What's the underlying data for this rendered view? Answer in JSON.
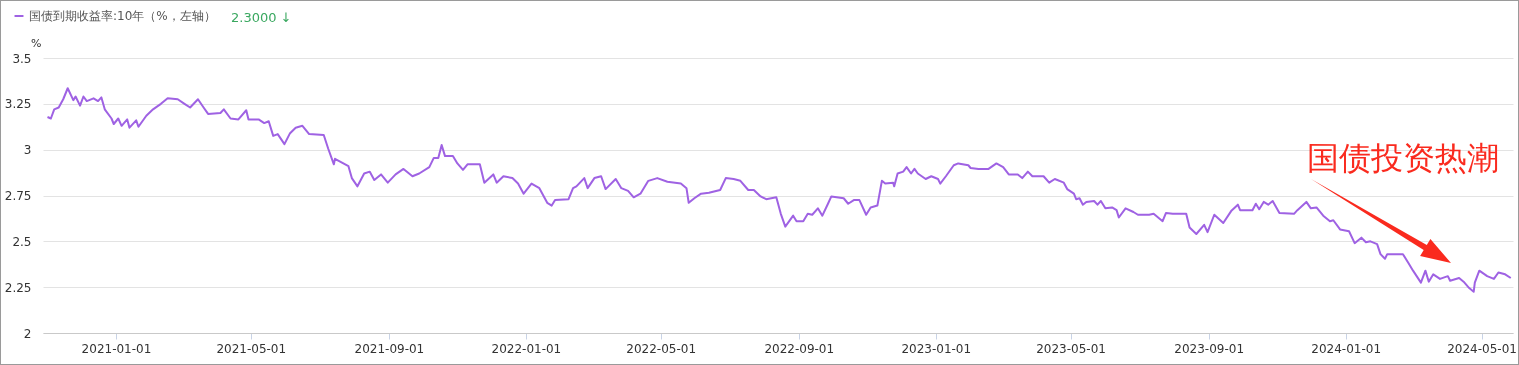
{
  "chart_data": {
    "type": "line",
    "ylabel": "%",
    "xlim": [
      "2020-10-28",
      "2024-05-29"
    ],
    "xticks": [
      "2021-01-01",
      "2021-05-01",
      "2021-09-01",
      "2022-01-01",
      "2022-05-01",
      "2022-09-01",
      "2023-01-01",
      "2023-05-01",
      "2023-09-01",
      "2024-01-01",
      "2024-05-01"
    ],
    "ylim": [
      2,
      3.5
    ],
    "yticks": [
      2,
      2.25,
      2.5,
      2.75,
      3,
      3.25,
      3.5
    ],
    "grid": "y",
    "legend": "top left",
    "line_style": "solid",
    "marker": "none",
    "annotations": [
      "2.3000 ↓",
      "国债投资热潮"
    ],
    "series": [
      {
        "name": "国债到期收益率:10年（%，左轴）",
        "color": "#9f62e3",
        "x": [
          "2020-11-01",
          "2020-11-04",
          "2020-11-07",
          "2020-11-11",
          "2020-11-15",
          "2020-11-19",
          "2020-11-24",
          "2020-11-26",
          "2020-11-30",
          "2020-12-03",
          "2020-12-06",
          "2020-12-12",
          "2020-12-16",
          "2020-12-19",
          "2020-12-22",
          "2020-12-28",
          "2020-12-30",
          "2021-01-03",
          "2021-01-06",
          "2021-01-11",
          "2021-01-13",
          "2021-01-19",
          "2021-01-21",
          "2021-01-28",
          "2021-02-03",
          "2021-02-10",
          "2021-02-16",
          "2021-02-25",
          "2021-03-03",
          "2021-03-08",
          "2021-03-15",
          "2021-03-20",
          "2021-03-24",
          "2021-04-04",
          "2021-04-07",
          "2021-04-13",
          "2021-04-20",
          "2021-04-27",
          "2021-04-29",
          "2021-05-08",
          "2021-05-13",
          "2021-05-17",
          "2021-05-21",
          "2021-05-25",
          "2021-05-31",
          "2021-06-05",
          "2021-06-10",
          "2021-06-16",
          "2021-06-22",
          "2021-07-05",
          "2021-07-09",
          "2021-07-14",
          "2021-07-15",
          "2021-07-27",
          "2021-07-30",
          "2021-08-04",
          "2021-08-10",
          "2021-08-15",
          "2021-08-19",
          "2021-08-25",
          "2021-08-31",
          "2021-09-07",
          "2021-09-14",
          "2021-09-22",
          "2021-09-28",
          "2021-10-07",
          "2021-10-11",
          "2021-10-15",
          "2021-10-18",
          "2021-10-21",
          "2021-10-28",
          "2021-11-01",
          "2021-11-06",
          "2021-11-10",
          "2021-11-21",
          "2021-11-25",
          "2021-12-03",
          "2021-12-06",
          "2021-12-12",
          "2021-12-20",
          "2021-12-25",
          "2021-12-30",
          "2022-01-06",
          "2022-01-13",
          "2022-01-20",
          "2022-01-24",
          "2022-01-27",
          "2022-02-08",
          "2022-02-12",
          "2022-02-15",
          "2022-02-22",
          "2022-02-25",
          "2022-03-03",
          "2022-03-09",
          "2022-03-13",
          "2022-03-22",
          "2022-03-27",
          "2022-04-02",
          "2022-04-07",
          "2022-04-13",
          "2022-04-20",
          "2022-04-28",
          "2022-05-07",
          "2022-05-19",
          "2022-05-24",
          "2022-05-26",
          "2022-05-31",
          "2022-06-06",
          "2022-06-13",
          "2022-06-23",
          "2022-06-28",
          "2022-07-05",
          "2022-07-11",
          "2022-07-18",
          "2022-07-23",
          "2022-07-29",
          "2022-08-03",
          "2022-08-12",
          "2022-08-16",
          "2022-08-20",
          "2022-08-27",
          "2022-08-30",
          "2022-09-05",
          "2022-09-09",
          "2022-09-13",
          "2022-09-18",
          "2022-09-22",
          "2022-09-27",
          "2022-09-30",
          "2022-10-11",
          "2022-10-15",
          "2022-10-20",
          "2022-10-25",
          "2022-10-31",
          "2022-11-04",
          "2022-11-10",
          "2022-11-14",
          "2022-11-17",
          "2022-11-24",
          "2022-11-25",
          "2022-11-28",
          "2022-12-03",
          "2022-12-06",
          "2022-12-10",
          "2022-12-13",
          "2022-12-16",
          "2022-12-23",
          "2022-12-28",
          "2023-01-03",
          "2023-01-05",
          "2023-01-10",
          "2023-01-17",
          "2023-01-21",
          "2023-01-30",
          "2023-02-01",
          "2023-02-08",
          "2023-02-17",
          "2023-02-24",
          "2023-03-02",
          "2023-03-07",
          "2023-03-15",
          "2023-03-19",
          "2023-03-24",
          "2023-03-28",
          "2023-04-07",
          "2023-04-12",
          "2023-04-17",
          "2023-04-25",
          "2023-04-28",
          "2023-05-04",
          "2023-05-06",
          "2023-05-09",
          "2023-05-12",
          "2023-05-15",
          "2023-05-22",
          "2023-05-25",
          "2023-05-28",
          "2023-06-01",
          "2023-06-07",
          "2023-06-11",
          "2023-06-13",
          "2023-06-19",
          "2023-06-26",
          "2023-06-30",
          "2023-07-10",
          "2023-07-14",
          "2023-07-22",
          "2023-07-25",
          "2023-07-31",
          "2023-08-12",
          "2023-08-15",
          "2023-08-21",
          "2023-08-28",
          "2023-08-31",
          "2023-09-06",
          "2023-09-14",
          "2023-09-21",
          "2023-09-27",
          "2023-09-29",
          "2023-10-10",
          "2023-10-13",
          "2023-10-16",
          "2023-10-20",
          "2023-10-24",
          "2023-10-28",
          "2023-11-03",
          "2023-11-16",
          "2023-11-19",
          "2023-11-27",
          "2023-12-01",
          "2023-12-06",
          "2023-12-12",
          "2023-12-18",
          "2023-12-21",
          "2023-12-27",
          "2024-01-04",
          "2024-01-09",
          "2024-01-15",
          "2024-01-19",
          "2024-01-23",
          "2024-01-29",
          "2024-02-01",
          "2024-02-05",
          "2024-02-07",
          "2024-02-21",
          "2024-02-26",
          "2024-03-01",
          "2024-03-08",
          "2024-03-12",
          "2024-03-15",
          "2024-03-19",
          "2024-03-25",
          "2024-04-01",
          "2024-04-03",
          "2024-04-11",
          "2024-04-15",
          "2024-04-20",
          "2024-04-24",
          "2024-04-25",
          "2024-04-29",
          "2024-05-06",
          "2024-05-12",
          "2024-05-16",
          "2024-05-22",
          "2024-05-27"
        ],
        "values": [
          3.178,
          3.17,
          3.22,
          3.23,
          3.275,
          3.335,
          3.27,
          3.29,
          3.24,
          3.29,
          3.265,
          3.28,
          3.265,
          3.285,
          3.22,
          3.17,
          3.14,
          3.17,
          3.13,
          3.165,
          3.12,
          3.16,
          3.125,
          3.185,
          3.22,
          3.25,
          3.28,
          3.275,
          3.25,
          3.23,
          3.275,
          3.23,
          3.195,
          3.2,
          3.22,
          3.17,
          3.165,
          3.215,
          3.165,
          3.165,
          3.145,
          3.155,
          3.075,
          3.085,
          3.03,
          3.09,
          3.12,
          3.13,
          3.085,
          3.08,
          3.005,
          2.92,
          2.95,
          2.91,
          2.845,
          2.8,
          2.87,
          2.88,
          2.835,
          2.865,
          2.82,
          2.865,
          2.895,
          2.855,
          2.87,
          2.905,
          2.955,
          2.955,
          3.025,
          2.965,
          2.965,
          2.925,
          2.89,
          2.92,
          2.92,
          2.82,
          2.865,
          2.82,
          2.855,
          2.845,
          2.815,
          2.76,
          2.815,
          2.79,
          2.71,
          2.695,
          2.725,
          2.73,
          2.79,
          2.8,
          2.845,
          2.79,
          2.845,
          2.855,
          2.785,
          2.84,
          2.79,
          2.775,
          2.74,
          2.76,
          2.83,
          2.845,
          2.825,
          2.815,
          2.79,
          2.71,
          2.735,
          2.76,
          2.765,
          2.78,
          2.845,
          2.84,
          2.83,
          2.78,
          2.78,
          2.745,
          2.73,
          2.74,
          2.65,
          2.58,
          2.64,
          2.61,
          2.61,
          2.65,
          2.645,
          2.68,
          2.64,
          2.705,
          2.745,
          2.735,
          2.705,
          2.725,
          2.725,
          2.645,
          2.685,
          2.695,
          2.83,
          2.815,
          2.82,
          2.8,
          2.87,
          2.88,
          2.905,
          2.87,
          2.895,
          2.87,
          2.84,
          2.855,
          2.84,
          2.815,
          2.855,
          2.915,
          2.925,
          2.915,
          2.9,
          2.895,
          2.895,
          2.925,
          2.905,
          2.865,
          2.865,
          2.845,
          2.88,
          2.855,
          2.855,
          2.82,
          2.84,
          2.82,
          2.785,
          2.76,
          2.73,
          2.735,
          2.7,
          2.715,
          2.72,
          2.7,
          2.72,
          2.68,
          2.685,
          2.67,
          2.63,
          2.68,
          2.66,
          2.645,
          2.645,
          2.65,
          2.61,
          2.655,
          2.65,
          2.65,
          2.575,
          2.54,
          2.59,
          2.55,
          2.645,
          2.6,
          2.665,
          2.7,
          2.67,
          2.67,
          2.705,
          2.675,
          2.715,
          2.7,
          2.72,
          2.655,
          2.65,
          2.67,
          2.715,
          2.68,
          2.685,
          2.64,
          2.61,
          2.615,
          2.565,
          2.555,
          2.49,
          2.52,
          2.495,
          2.5,
          2.485,
          2.43,
          2.405,
          2.43,
          2.43,
          2.38,
          2.34,
          2.275,
          2.34,
          2.28,
          2.32,
          2.295,
          2.31,
          2.285,
          2.3,
          2.28,
          2.245,
          2.225,
          2.275,
          2.34,
          2.31,
          2.295,
          2.33,
          2.32,
          2.3
        ]
      }
    ]
  }
}
